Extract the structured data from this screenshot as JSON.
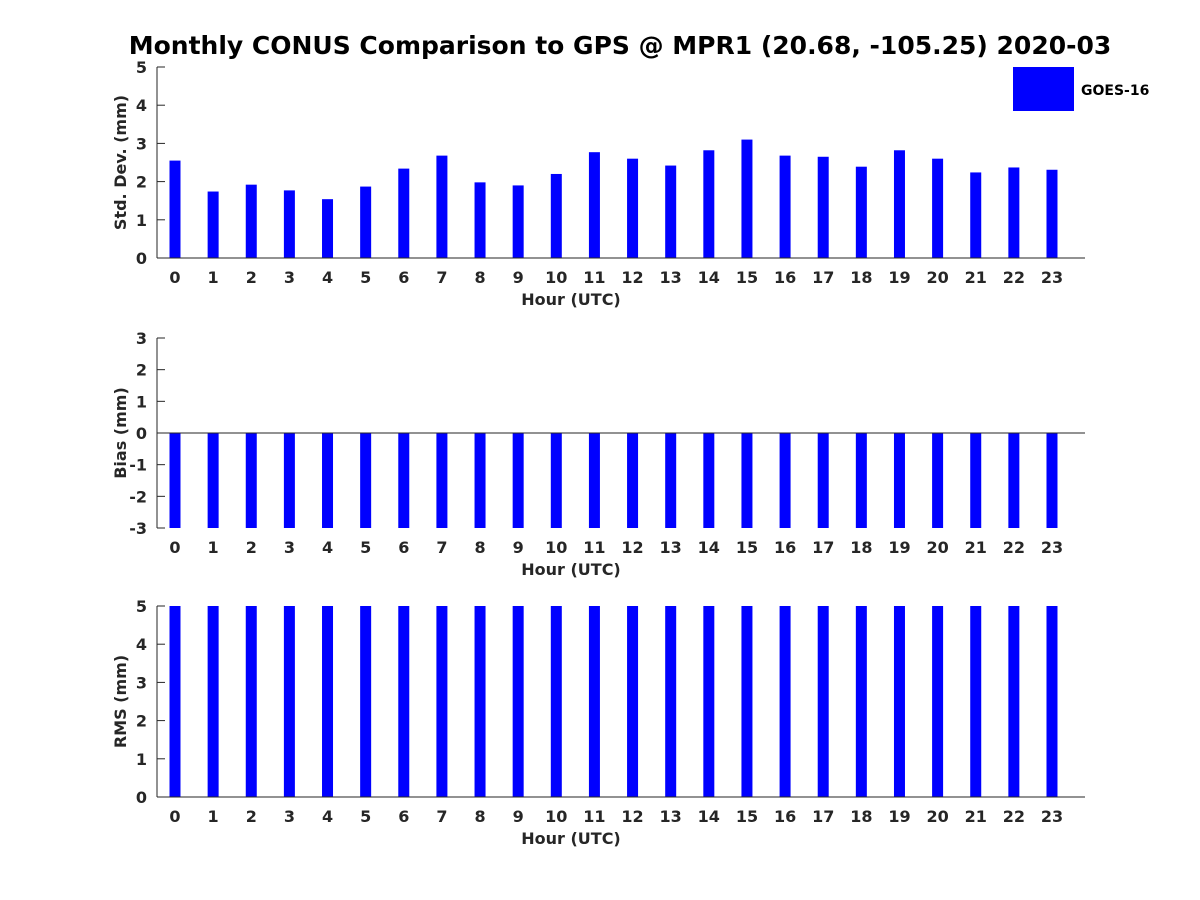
{
  "title": "Monthly CONUS Comparison to GPS @ MPR1 (20.68, -105.25) 2020-03",
  "chart_data": [
    {
      "type": "bar",
      "title": "Monthly CONUS Comparison to GPS @ MPR1 (20.68, -105.25) 2020-03",
      "xlabel": "Hour (UTC)",
      "ylabel": "Std. Dev. (mm)",
      "ylim": [
        0,
        5
      ],
      "yticks": [
        0,
        1,
        2,
        3,
        4,
        5
      ],
      "categories": [
        "0",
        "1",
        "2",
        "3",
        "4",
        "5",
        "6",
        "7",
        "8",
        "9",
        "10",
        "11",
        "12",
        "13",
        "14",
        "15",
        "16",
        "17",
        "18",
        "19",
        "20",
        "21",
        "22",
        "23"
      ],
      "series": [
        {
          "name": "GOES-16",
          "color": "#0000ff",
          "values": [
            2.55,
            1.74,
            1.92,
            1.77,
            1.54,
            1.87,
            2.34,
            2.68,
            1.98,
            1.9,
            2.2,
            2.77,
            2.6,
            2.42,
            2.82,
            3.1,
            2.68,
            2.65,
            2.39,
            2.82,
            2.6,
            2.24,
            2.37,
            2.31
          ]
        }
      ],
      "legend": {
        "position": "top-right",
        "entries": [
          "GOES-16"
        ]
      }
    },
    {
      "type": "bar",
      "xlabel": "Hour (UTC)",
      "ylabel": "Bias (mm)",
      "ylim": [
        -3,
        3
      ],
      "yticks": [
        -3,
        -2,
        -1,
        0,
        1,
        2,
        3
      ],
      "baseline": 0,
      "categories": [
        "0",
        "1",
        "2",
        "3",
        "4",
        "5",
        "6",
        "7",
        "8",
        "9",
        "10",
        "11",
        "12",
        "13",
        "14",
        "15",
        "16",
        "17",
        "18",
        "19",
        "20",
        "21",
        "22",
        "23"
      ],
      "series": [
        {
          "name": "GOES-16",
          "color": "#0000ff",
          "values": [
            -3,
            -3,
            -3,
            -3,
            -3,
            -3,
            -3,
            -3,
            -3,
            -3,
            -3,
            -3,
            -3,
            -3,
            -3,
            -3,
            -3,
            -3,
            -3,
            -3,
            -3,
            -3,
            -3,
            -3
          ]
        }
      ]
    },
    {
      "type": "bar",
      "xlabel": "Hour (UTC)",
      "ylabel": "RMS (mm)",
      "ylim": [
        0,
        5
      ],
      "yticks": [
        0,
        1,
        2,
        3,
        4,
        5
      ],
      "categories": [
        "0",
        "1",
        "2",
        "3",
        "4",
        "5",
        "6",
        "7",
        "8",
        "9",
        "10",
        "11",
        "12",
        "13",
        "14",
        "15",
        "16",
        "17",
        "18",
        "19",
        "20",
        "21",
        "22",
        "23"
      ],
      "series": [
        {
          "name": "GOES-16",
          "color": "#0000ff",
          "values": [
            5,
            5,
            5,
            5,
            5,
            5,
            5,
            5,
            5,
            5,
            5,
            5,
            5,
            5,
            5,
            5,
            5,
            5,
            5,
            5,
            5,
            5,
            5,
            5
          ]
        }
      ]
    }
  ]
}
